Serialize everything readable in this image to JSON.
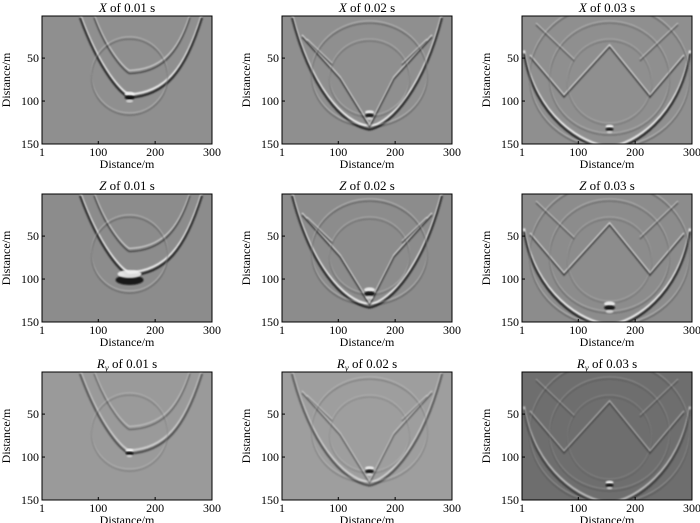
{
  "figure": {
    "x_axis_label": "Distance/m",
    "y_axis_label": "Distance/m",
    "x_ticks": [
      "1",
      "100",
      "200",
      "300"
    ],
    "y_ticks": [
      "50",
      "100",
      "150"
    ],
    "x_range": [
      1,
      300
    ],
    "y_range": [
      1,
      150
    ],
    "panels": [
      {
        "component": "X",
        "sub": "",
        "time_label": "of 0.01 s",
        "time_s": 0.01,
        "background": "#8f8f8f"
      },
      {
        "component": "X",
        "sub": "",
        "time_label": "of 0.02 s",
        "time_s": 0.02,
        "background": "#8f8f8f"
      },
      {
        "component": "X",
        "sub": "",
        "time_label": "of 0.03 s",
        "time_s": 0.03,
        "background": "#8f8f8f"
      },
      {
        "component": "Z",
        "sub": "",
        "time_label": "of 0.01 s",
        "time_s": 0.01,
        "background": "#8c8c8c"
      },
      {
        "component": "Z",
        "sub": "",
        "time_label": "of 0.02 s",
        "time_s": 0.02,
        "background": "#8c8c8c"
      },
      {
        "component": "Z",
        "sub": "",
        "time_label": "of 0.03 s",
        "time_s": 0.03,
        "background": "#8c8c8c"
      },
      {
        "component": "R",
        "sub": "y",
        "time_label": "of 0.01 s",
        "time_s": 0.01,
        "background": "#9a9a9a"
      },
      {
        "component": "R",
        "sub": "y",
        "time_label": "of 0.02 s",
        "time_s": 0.02,
        "background": "#9e9e9e"
      },
      {
        "component": "R",
        "sub": "y",
        "time_label": "of 0.03 s",
        "time_s": 0.03,
        "background": "#6e6e6e"
      }
    ]
  }
}
